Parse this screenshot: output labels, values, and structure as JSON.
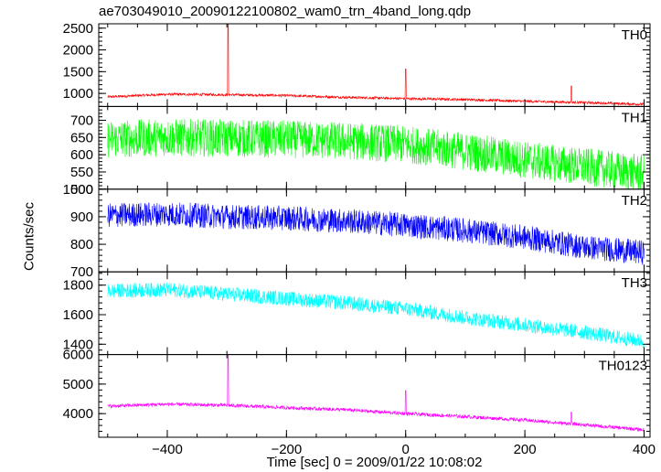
{
  "chart_data": {
    "type": "line",
    "title": "ae703049010_20090122100802_wam0_trn_4band_long.qdp",
    "xlabel": "Time [sec] 0 = 2009/01/22 10:08:02",
    "ylabel": "Counts/sec",
    "xlim": [
      -515,
      410
    ],
    "xticks": [
      -400,
      -200,
      0,
      200,
      400
    ],
    "xtick_labels": [
      "−400",
      "−200",
      "0",
      "200",
      "400"
    ],
    "grid": false,
    "panels": [
      {
        "name": "TH0",
        "color": "#ff0000",
        "ylim": [
          700,
          2600
        ],
        "yticks": [
          1000,
          1500,
          2000,
          2500
        ],
        "ytick_labels": [
          "1000",
          "1500",
          "2000",
          "2500"
        ],
        "baseline": [
          [
            -500,
            920
          ],
          [
            -400,
            980
          ],
          [
            -300,
            970
          ],
          [
            -200,
            950
          ],
          [
            -100,
            910
          ],
          [
            0,
            880
          ],
          [
            100,
            860
          ],
          [
            200,
            820
          ],
          [
            300,
            790
          ],
          [
            400,
            750
          ]
        ],
        "noise": 30,
        "spikes": [
          [
            -298,
            2600
          ],
          [
            0,
            1560
          ],
          [
            278,
            1170
          ]
        ]
      },
      {
        "name": "TH1",
        "color": "#00ff00",
        "ylim": [
          500,
          740
        ],
        "yticks": [
          500,
          550,
          600,
          650,
          700
        ],
        "ytick_labels": [
          "500",
          "550",
          "600",
          "650",
          "700"
        ],
        "baseline": [
          [
            -500,
            645
          ],
          [
            -400,
            650
          ],
          [
            -300,
            648
          ],
          [
            -200,
            645
          ],
          [
            -100,
            640
          ],
          [
            0,
            630
          ],
          [
            100,
            610
          ],
          [
            200,
            585
          ],
          [
            300,
            565
          ],
          [
            400,
            545
          ]
        ],
        "noise": 55,
        "spikes": []
      },
      {
        "name": "TH2",
        "color": "#0000ff",
        "ylim": [
          700,
          1000
        ],
        "yticks": [
          700,
          800,
          900,
          1000
        ],
        "ytick_labels": [
          "700",
          "800",
          "900",
          "1000"
        ],
        "baseline": [
          [
            -500,
            905
          ],
          [
            -400,
            910
          ],
          [
            -300,
            900
          ],
          [
            -200,
            895
          ],
          [
            -100,
            885
          ],
          [
            0,
            870
          ],
          [
            100,
            850
          ],
          [
            200,
            825
          ],
          [
            300,
            790
          ],
          [
            400,
            770
          ]
        ],
        "noise": 45,
        "spikes": []
      },
      {
        "name": "TH3",
        "color": "#00ffff",
        "ylim": [
          1330,
          1890
        ],
        "yticks": [
          1400,
          1600,
          1800
        ],
        "ytick_labels": [
          "1400",
          "1600",
          "1800"
        ],
        "baseline": [
          [
            -500,
            1760
          ],
          [
            -400,
            1770
          ],
          [
            -300,
            1740
          ],
          [
            -200,
            1710
          ],
          [
            -100,
            1680
          ],
          [
            0,
            1640
          ],
          [
            100,
            1580
          ],
          [
            200,
            1530
          ],
          [
            300,
            1480
          ],
          [
            400,
            1420
          ]
        ],
        "noise": 50,
        "spikes": []
      },
      {
        "name": "TH0123",
        "color": "#ff00ff",
        "ylim": [
          3200,
          6000
        ],
        "yticks": [
          4000,
          5000,
          6000
        ],
        "ytick_labels": [
          "4000",
          "5000",
          "6000"
        ],
        "baseline": [
          [
            -500,
            4250
          ],
          [
            -400,
            4320
          ],
          [
            -300,
            4280
          ],
          [
            -200,
            4200
          ],
          [
            -100,
            4130
          ],
          [
            0,
            4000
          ],
          [
            100,
            3900
          ],
          [
            200,
            3780
          ],
          [
            300,
            3620
          ],
          [
            400,
            3450
          ]
        ],
        "noise": 60,
        "spikes": [
          [
            -298,
            6000
          ],
          [
            0,
            4780
          ],
          [
            278,
            4050
          ]
        ]
      }
    ]
  }
}
